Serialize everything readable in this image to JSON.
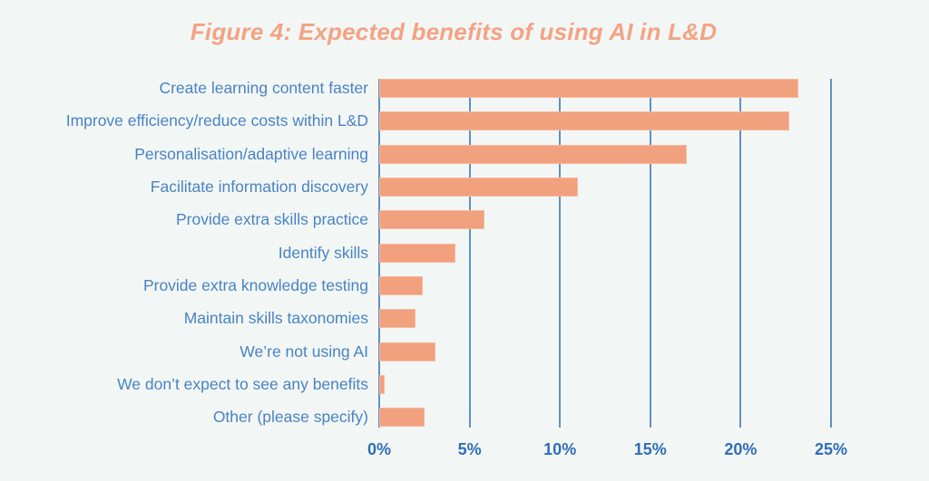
{
  "page": {
    "background_color": "#f2f7f5"
  },
  "title": {
    "text": "Figure 4: Expected benefits of using AI in L&D",
    "color": "#f5a284"
  },
  "chart_data": {
    "type": "bar",
    "orientation": "horizontal",
    "title": "Figure 4: Expected benefits of using AI in L&D",
    "categories": [
      "Create learning content faster",
      "Improve efficiency/reduce costs within L&D",
      "Personalisation/adaptive learning",
      "Facilitate information discovery",
      "Provide extra skills practice",
      "Identify skills",
      "Provide extra knowledge testing",
      "Maintain skills taxonomies",
      "We’re not using AI",
      "We don’t expect to see any benefits",
      "Other (please specify)"
    ],
    "values": [
      23.2,
      22.7,
      17.0,
      11.0,
      5.8,
      4.2,
      2.4,
      2.0,
      3.1,
      0.3,
      2.5
    ],
    "unit": "%",
    "xlabel": "",
    "ylabel": "",
    "xlim": [
      0,
      25
    ],
    "x_tick_labels": [
      "0%",
      "5%",
      "10%",
      "15%",
      "20%",
      "25%"
    ],
    "x_tick_values": [
      0,
      5,
      10,
      15,
      20,
      25
    ],
    "grid": "vertical-only",
    "legend": "none",
    "bar_color": "#f2a17e",
    "category_label_color": "#4a82c4",
    "tick_label_color": "#2f6db8",
    "gridline_color": "#6290c0"
  }
}
